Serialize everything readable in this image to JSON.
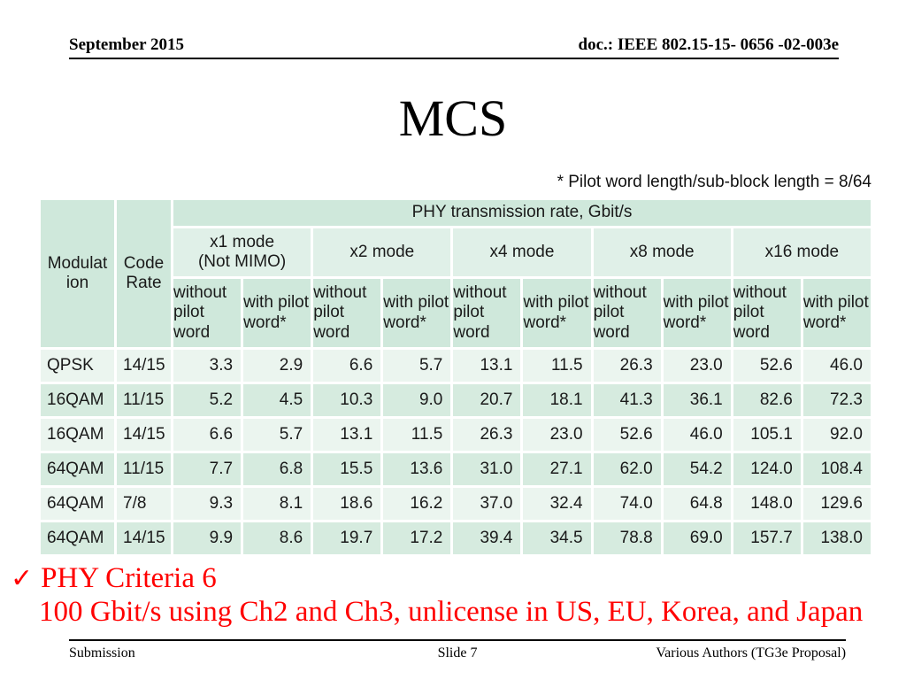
{
  "slide": {
    "header": {
      "date": "September 2015",
      "doc_number": "doc.: IEEE 802.15-15- 0656 -02-003e"
    },
    "title": "MCS",
    "table_note": "* Pilot word length/sub-block length = 8/64",
    "table": {
      "corner_headers": {
        "modulation": "Modulation",
        "code_rate": "Code Rate"
      },
      "group_header": "PHY transmission rate, Gbit/s",
      "mode_headers": [
        "x1 mode\n(Not MIMO)",
        "x2 mode",
        "x4 mode",
        "x8 mode",
        "x16 mode"
      ],
      "pilot_headers": {
        "without": "without pilot word",
        "with": "with pilot word*"
      },
      "rows": [
        {
          "modulation": "QPSK",
          "code_rate": "14/15",
          "values": [
            "3.3",
            "2.9",
            "6.6",
            "5.7",
            "13.1",
            "11.5",
            "26.3",
            "23.0",
            "52.6",
            "46.0"
          ]
        },
        {
          "modulation": "16QAM",
          "code_rate": "11/15",
          "values": [
            "5.2",
            "4.5",
            "10.3",
            "9.0",
            "20.7",
            "18.1",
            "41.3",
            "36.1",
            "82.6",
            "72.3"
          ]
        },
        {
          "modulation": "16QAM",
          "code_rate": "14/15",
          "values": [
            "6.6",
            "5.7",
            "13.1",
            "11.5",
            "26.3",
            "23.0",
            "52.6",
            "46.0",
            "105.1",
            "92.0"
          ]
        },
        {
          "modulation": "64QAM",
          "code_rate": "11/15",
          "values": [
            "7.7",
            "6.8",
            "15.5",
            "13.6",
            "31.0",
            "27.1",
            "62.0",
            "54.2",
            "124.0",
            "108.4"
          ]
        },
        {
          "modulation": "64QAM",
          "code_rate": "7/8",
          "values": [
            "9.3",
            "8.1",
            "18.6",
            "16.2",
            "37.0",
            "32.4",
            "74.0",
            "64.8",
            "148.0",
            "129.6"
          ]
        },
        {
          "modulation": "64QAM",
          "code_rate": "14/15",
          "values": [
            "9.9",
            "8.6",
            "19.7",
            "17.2",
            "39.4",
            "34.5",
            "78.8",
            "69.0",
            "157.7",
            "138.0"
          ]
        }
      ],
      "colors": {
        "header_fill": "#cfe8db",
        "mode_fill": "#e0f0e8",
        "row_light": "#ebf5ef",
        "row_dark": "#d6ebdf",
        "gridline": "#ffffff"
      }
    },
    "criteria": {
      "check_glyph": "✓",
      "heading": "PHY Criteria 6",
      "detail": "100 Gbit/s using Ch2 and Ch3, unlicense in US, EU, Korea, and Japan",
      "color": "#ff0000"
    },
    "footer": {
      "left": "Submission",
      "center": "Slide 7",
      "right": "Various Authors (TG3e Proposal)"
    }
  }
}
